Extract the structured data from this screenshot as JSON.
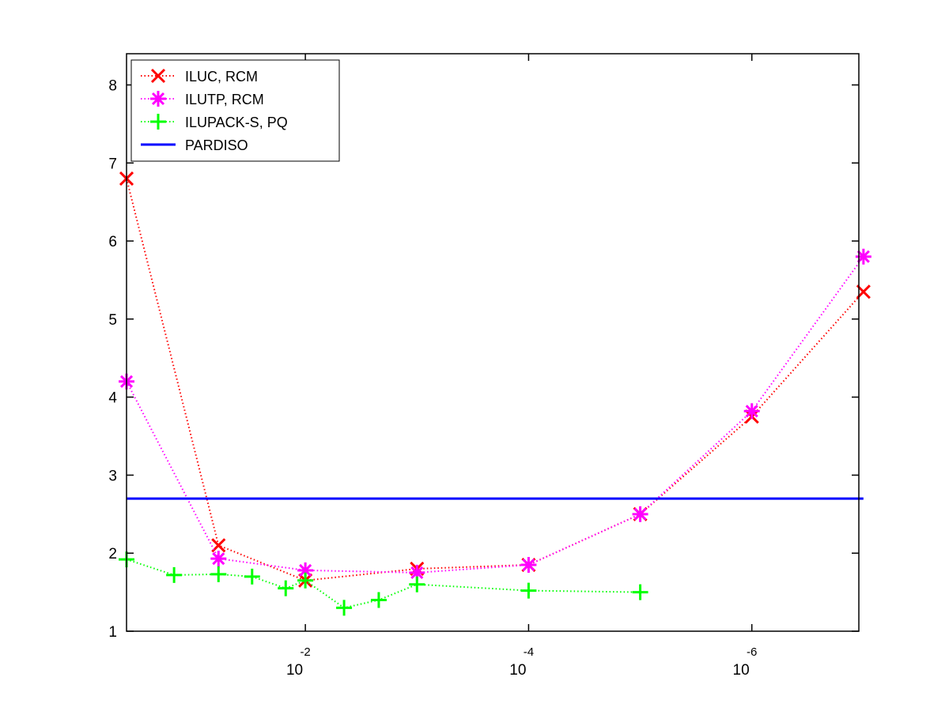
{
  "chart_data": {
    "type": "line",
    "title": "",
    "xlabel": "",
    "ylabel": "",
    "xscale": "log",
    "xaxis_direction": "decreasing",
    "xlim": [
      0.4,
      1.1e-07
    ],
    "ylim": [
      1,
      8.4
    ],
    "x_ticks": [
      {
        "value": 0.01,
        "base": "10",
        "exponent": "-2"
      },
      {
        "value": 0.0001,
        "base": "10",
        "exponent": "-4"
      },
      {
        "value": 1e-06,
        "base": "10",
        "exponent": "-6"
      }
    ],
    "y_ticks": [
      {
        "value": 1,
        "label": "1"
      },
      {
        "value": 2,
        "label": "2"
      },
      {
        "value": 3,
        "label": "3"
      },
      {
        "value": 4,
        "label": "4"
      },
      {
        "value": 5,
        "label": "5"
      },
      {
        "value": 6,
        "label": "6"
      },
      {
        "value": 7,
        "label": "7"
      },
      {
        "value": 8,
        "label": "8"
      }
    ],
    "grid": false,
    "legend_position": "top-left",
    "series": [
      {
        "name": "ILUC, RCM",
        "color": "#ff0000",
        "marker": "x",
        "line_style": "dotted",
        "x": [
          0.4,
          0.06,
          0.01,
          0.001,
          0.0001,
          1e-05,
          1e-06,
          1e-07
        ],
        "y": [
          6.8,
          2.1,
          1.65,
          1.8,
          1.85,
          2.5,
          3.75,
          5.35
        ]
      },
      {
        "name": "ILUTP, RCM",
        "color": "#ff00ff",
        "marker": "asterisk",
        "line_style": "dotted",
        "x": [
          0.4,
          0.06,
          0.01,
          0.001,
          0.0001,
          1e-05,
          1e-06,
          1e-07
        ],
        "y": [
          4.2,
          1.93,
          1.78,
          1.75,
          1.85,
          2.5,
          3.82,
          5.8
        ]
      },
      {
        "name": "ILUPACK-S, PQ",
        "color": "#00ff00",
        "marker": "plus",
        "line_style": "dotted",
        "x": [
          0.4,
          0.15,
          0.06,
          0.03,
          0.015,
          0.01,
          0.0045,
          0.0022,
          0.001,
          0.0001,
          1e-05
        ],
        "y": [
          1.92,
          1.72,
          1.73,
          1.7,
          1.55,
          1.65,
          1.3,
          1.4,
          1.6,
          1.52,
          1.5
        ]
      },
      {
        "name": "PARDISO",
        "color": "#0000ff",
        "marker": "none",
        "line_style": "solid",
        "x": [
          0.4,
          1e-07
        ],
        "y": [
          2.7,
          2.7
        ]
      }
    ]
  }
}
